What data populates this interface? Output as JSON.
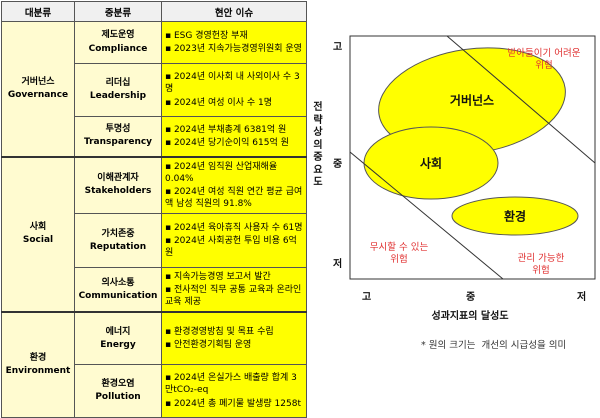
{
  "table": {
    "headers": [
      "대분류",
      "중분류",
      "현안 이슈"
    ],
    "groups": [
      {
        "ko": "거버넌스",
        "en": "Governance",
        "rows": [
          {
            "ko": "제도운영",
            "en": "Compliance",
            "issues": [
              "▪ ESG 경영헌장 부재",
              "▪ 2023년 지속가능경영위원회 운영"
            ]
          },
          {
            "ko": "리더십",
            "en": "Leadership",
            "issues": [
              "▪ 2024년 이사회 내 사외이사 수 3명",
              "▪ 2024년 여성 이사 수 1명"
            ]
          },
          {
            "ko": "투명성",
            "en": "Transparency",
            "issues": [
              "▪ 2024년 부채총계 6381억 원",
              "▪ 2024년 당기순이익 615억 원"
            ]
          }
        ]
      },
      {
        "ko": "사회",
        "en": "Social",
        "rows": [
          {
            "ko": "이해관계자",
            "en": "Stakeholders",
            "issues": [
              "▪ 2024년 임직원 산업재해율 0.04%",
              "▪ 2024년 여성 직원 연간 평균 급여액 남성 직원의 91.8%"
            ]
          },
          {
            "ko": "가치존중",
            "en": "Reputation",
            "issues": [
              "▪ 2024년 육아휴직 사용자 수 61명",
              "▪ 2024년 사회공헌 투입 비용 6억 원"
            ]
          },
          {
            "ko": "의사소통",
            "en": "Communication",
            "issues": [
              "▪ 지속가능경영 보고서 발간",
              "▪ 전사적인 직무 공통 교육과 온라인 교육 제공"
            ]
          }
        ]
      },
      {
        "ko": "환경",
        "en": "Environment",
        "rows": [
          {
            "ko": "에너지",
            "en": "Energy",
            "issues": [
              "▪ 환경경영방침 및 목표 수립",
              "▪ 안전환경기획팀 운영"
            ]
          },
          {
            "ko": "환경오염",
            "en": "Pollution",
            "issues": [
              "▪ 2024년 온실가스 배출량 합계 3만tCO₂-eq",
              "▪ 2024년 총 폐기물 발생량 1258t"
            ]
          }
        ]
      }
    ]
  },
  "diagram": {
    "y_label": "전략상의중요도",
    "y_ticks": [
      "고",
      "중",
      "저"
    ],
    "x_label": "성과지표의 달성도",
    "x_ticks": [
      "고",
      "중",
      "저"
    ],
    "bubbles": [
      "거버넌스",
      "사회",
      "환경"
    ],
    "zones": [
      {
        "line1": "받아들이기 어려운",
        "line2": "위험"
      },
      {
        "line1": "무시할 수 있는",
        "line2": "위험"
      },
      {
        "line1": "관리 가능한",
        "line2": "위험"
      }
    ],
    "note": "* 원의 크기는  개선의 시급성을 의미",
    "colors": {
      "bubble": "#ffff00",
      "zone_text": "#e03030"
    }
  }
}
